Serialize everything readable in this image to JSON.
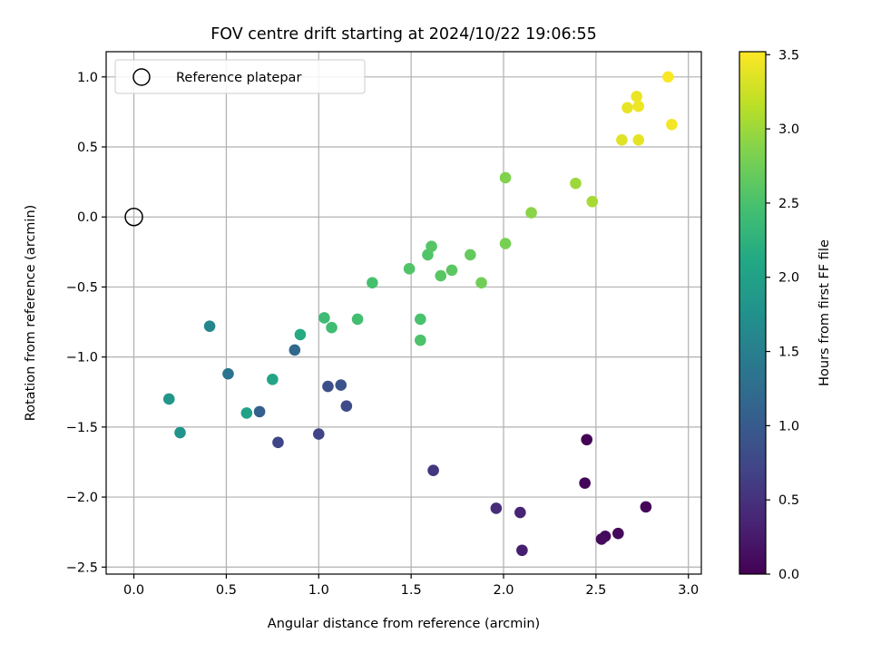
{
  "chart_data": {
    "type": "scatter",
    "title": "FOV centre drift starting at 2024/10/22 19:06:55",
    "xlabel": "Angular distance from reference (arcmin)",
    "ylabel": "Rotation from reference (arcmin)",
    "xlim": [
      -0.15,
      3.07
    ],
    "ylim": [
      -2.55,
      1.18
    ],
    "xticks": [
      0.0,
      0.5,
      1.0,
      1.5,
      2.0,
      2.5,
      3.0
    ],
    "xtick_labels": [
      "0.0",
      "0.5",
      "1.0",
      "1.5",
      "2.0",
      "2.5",
      "3.0"
    ],
    "yticks": [
      -2.5,
      -2.0,
      -1.5,
      -1.0,
      -0.5,
      0.0,
      0.5,
      1.0
    ],
    "ytick_labels": [
      "−2.5",
      "−2.0",
      "−1.5",
      "−1.0",
      "−0.5",
      "0.0",
      "0.5",
      "1.0"
    ],
    "grid": true,
    "legend": {
      "placement": "upper-left",
      "entries": [
        "Reference platepar"
      ]
    },
    "reference_point": {
      "x": 0.0,
      "y": 0.0,
      "marker": "open-circle",
      "color": "#000000"
    },
    "colorbar": {
      "label": "Hours from first FF file",
      "range": [
        0.0,
        3.52
      ],
      "ticks": [
        0.0,
        0.5,
        1.0,
        1.5,
        2.0,
        2.5,
        3.0,
        3.5
      ],
      "tick_labels": [
        "0.0",
        "0.5",
        "1.0",
        "1.5",
        "2.0",
        "2.5",
        "3.0",
        "3.5"
      ],
      "colormap": "viridis"
    },
    "points": [
      {
        "x": 2.45,
        "y": -1.59,
        "t": 0.02
      },
      {
        "x": 2.44,
        "y": -1.9,
        "t": 0.03
      },
      {
        "x": 2.77,
        "y": -2.07,
        "t": 0.05
      },
      {
        "x": 2.62,
        "y": -2.26,
        "t": 0.07
      },
      {
        "x": 2.55,
        "y": -2.28,
        "t": 0.08
      },
      {
        "x": 2.53,
        "y": -2.3,
        "t": 0.1
      },
      {
        "x": 2.1,
        "y": -2.38,
        "t": 0.3
      },
      {
        "x": 2.09,
        "y": -2.11,
        "t": 0.35
      },
      {
        "x": 1.96,
        "y": -2.08,
        "t": 0.45
      },
      {
        "x": 1.62,
        "y": -1.81,
        "t": 0.55
      },
      {
        "x": 1.0,
        "y": -1.55,
        "t": 0.7
      },
      {
        "x": 0.78,
        "y": -1.61,
        "t": 0.72
      },
      {
        "x": 1.15,
        "y": -1.35,
        "t": 0.8
      },
      {
        "x": 1.05,
        "y": -1.21,
        "t": 0.85
      },
      {
        "x": 1.12,
        "y": -1.2,
        "t": 0.9
      },
      {
        "x": 0.68,
        "y": -1.39,
        "t": 1.05
      },
      {
        "x": 0.87,
        "y": -0.95,
        "t": 1.2
      },
      {
        "x": 0.51,
        "y": -1.12,
        "t": 1.35
      },
      {
        "x": 0.41,
        "y": -0.78,
        "t": 1.6
      },
      {
        "x": 0.25,
        "y": -1.54,
        "t": 1.8
      },
      {
        "x": 0.19,
        "y": -1.3,
        "t": 1.85
      },
      {
        "x": 0.61,
        "y": -1.4,
        "t": 2.0
      },
      {
        "x": 0.75,
        "y": -1.16,
        "t": 2.05
      },
      {
        "x": 0.9,
        "y": -0.84,
        "t": 2.15
      },
      {
        "x": 1.03,
        "y": -0.72,
        "t": 2.4
      },
      {
        "x": 1.07,
        "y": -0.79,
        "t": 2.42
      },
      {
        "x": 1.21,
        "y": -0.73,
        "t": 2.45
      },
      {
        "x": 1.29,
        "y": -0.47,
        "t": 2.48
      },
      {
        "x": 1.55,
        "y": -0.73,
        "t": 2.5
      },
      {
        "x": 1.55,
        "y": -0.88,
        "t": 2.52
      },
      {
        "x": 1.49,
        "y": -0.37,
        "t": 2.55
      },
      {
        "x": 1.59,
        "y": -0.27,
        "t": 2.55
      },
      {
        "x": 1.61,
        "y": -0.21,
        "t": 2.58
      },
      {
        "x": 1.66,
        "y": -0.42,
        "t": 2.6
      },
      {
        "x": 1.72,
        "y": -0.38,
        "t": 2.62
      },
      {
        "x": 1.82,
        "y": -0.27,
        "t": 2.68
      },
      {
        "x": 1.88,
        "y": -0.47,
        "t": 2.75
      },
      {
        "x": 2.01,
        "y": -0.19,
        "t": 2.8
      },
      {
        "x": 2.01,
        "y": 0.28,
        "t": 2.85
      },
      {
        "x": 2.15,
        "y": 0.03,
        "t": 2.9
      },
      {
        "x": 2.39,
        "y": 0.24,
        "t": 3.0
      },
      {
        "x": 2.48,
        "y": 0.11,
        "t": 3.05
      },
      {
        "x": 2.64,
        "y": 0.55,
        "t": 3.35
      },
      {
        "x": 2.73,
        "y": 0.55,
        "t": 3.38
      },
      {
        "x": 2.67,
        "y": 0.78,
        "t": 3.4
      },
      {
        "x": 2.72,
        "y": 0.86,
        "t": 3.42
      },
      {
        "x": 2.73,
        "y": 0.79,
        "t": 3.44
      },
      {
        "x": 2.91,
        "y": 0.66,
        "t": 3.46
      },
      {
        "x": 2.89,
        "y": 1.0,
        "t": 3.5
      }
    ]
  }
}
